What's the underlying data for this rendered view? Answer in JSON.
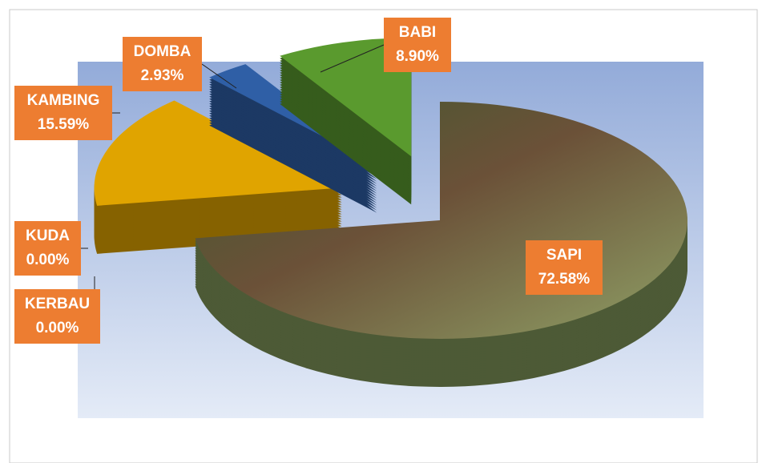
{
  "chart_data": {
    "type": "pie",
    "categories": [
      "SAPI",
      "KERBAU",
      "KUDA",
      "KAMBING",
      "DOMBA",
      "BABI"
    ],
    "values": [
      72.58,
      0.0,
      0.0,
      15.59,
      2.93,
      8.9
    ],
    "value_labels": [
      "72.58%",
      "0.00%",
      "0.00%",
      "15.59%",
      "2.93%",
      "8.90%"
    ],
    "colors": [
      "#7d8a57",
      "#3a3a3a",
      "#454545",
      "#e0a400",
      "#2f5fa6",
      "#5a9a2e"
    ]
  }
}
